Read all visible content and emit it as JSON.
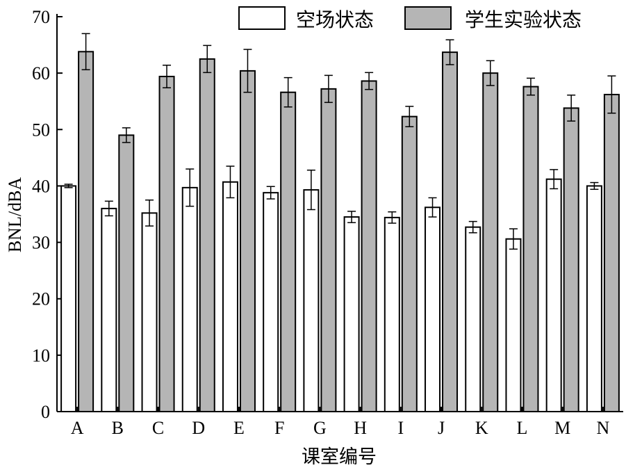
{
  "chart_data": {
    "type": "bar",
    "xlabel": "课室编号",
    "ylabel": "BNL/dBA",
    "ylim": [
      0,
      70
    ],
    "yticks": [
      0,
      10,
      20,
      30,
      40,
      50,
      60,
      70
    ],
    "categories": [
      "A",
      "B",
      "C",
      "D",
      "E",
      "F",
      "G",
      "H",
      "I",
      "J",
      "K",
      "L",
      "M",
      "N"
    ],
    "legend_position": "top-right",
    "series": [
      {
        "name": "空场状态",
        "color": "#ffffff",
        "values": [
          40.0,
          36.0,
          35.2,
          39.7,
          40.7,
          38.8,
          39.3,
          34.5,
          34.4,
          36.2,
          32.7,
          30.6,
          41.2,
          40.0
        ],
        "errors": [
          0.3,
          1.3,
          2.3,
          3.3,
          2.8,
          1.1,
          3.5,
          1.0,
          1.0,
          1.7,
          1.0,
          1.8,
          1.7,
          0.6
        ]
      },
      {
        "name": "学生实验状态",
        "color": "#b5b5b5",
        "values": [
          63.8,
          49.0,
          59.4,
          62.5,
          60.4,
          56.6,
          57.2,
          58.6,
          52.3,
          63.7,
          60.0,
          57.6,
          53.8,
          56.2
        ],
        "errors": [
          3.2,
          1.3,
          2.0,
          2.4,
          3.8,
          2.6,
          2.4,
          1.5,
          1.8,
          2.2,
          2.2,
          1.5,
          2.3,
          3.3
        ]
      }
    ]
  }
}
